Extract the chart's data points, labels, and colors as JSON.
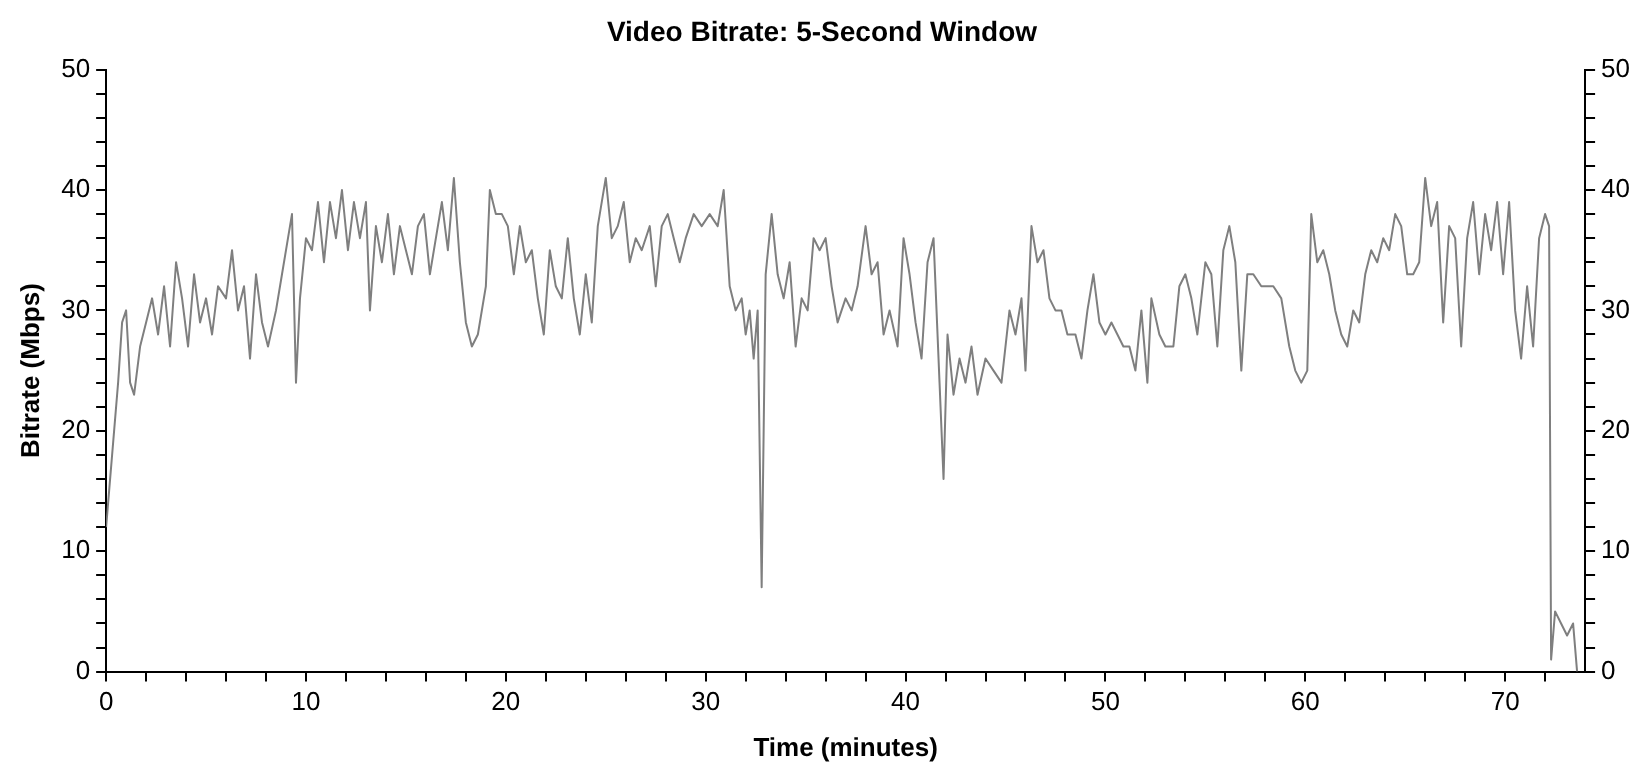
{
  "chart_data": {
    "type": "line",
    "title": "Video Bitrate: 5-Second Window",
    "xlabel": "Time (minutes)",
    "ylabel": "Bitrate (Mbps)",
    "x": [
      0,
      0.3,
      0.6,
      0.8,
      1.0,
      1.2,
      1.4,
      1.7,
      2.0,
      2.3,
      2.6,
      2.9,
      3.2,
      3.5,
      3.8,
      4.1,
      4.4,
      4.7,
      5.0,
      5.3,
      5.6,
      6.0,
      6.3,
      6.6,
      6.9,
      7.2,
      7.5,
      7.8,
      8.1,
      8.5,
      8.8,
      9.1,
      9.3,
      9.5,
      9.7,
      10.0,
      10.3,
      10.6,
      10.9,
      11.2,
      11.5,
      11.8,
      12.1,
      12.4,
      12.7,
      13.0,
      13.2,
      13.5,
      13.8,
      14.1,
      14.4,
      14.7,
      15.0,
      15.3,
      15.6,
      15.9,
      16.2,
      16.5,
      16.8,
      17.1,
      17.4,
      17.7,
      18.0,
      18.3,
      18.6,
      19.0,
      19.2,
      19.5,
      19.8,
      20.1,
      20.4,
      20.7,
      21.0,
      21.3,
      21.6,
      21.9,
      22.2,
      22.5,
      22.8,
      23.1,
      23.4,
      23.7,
      24.0,
      24.3,
      24.6,
      25.0,
      25.3,
      25.6,
      25.9,
      26.2,
      26.5,
      26.8,
      27.2,
      27.5,
      27.8,
      28.1,
      28.4,
      28.7,
      29.0,
      29.4,
      29.8,
      30.2,
      30.6,
      30.9,
      31.2,
      31.5,
      31.8,
      32.0,
      32.2,
      32.4,
      32.6,
      32.8,
      33.0,
      33.3,
      33.6,
      33.9,
      34.2,
      34.5,
      34.8,
      35.1,
      35.4,
      35.7,
      36.0,
      36.3,
      36.6,
      37.0,
      37.3,
      37.6,
      38.0,
      38.3,
      38.6,
      38.9,
      39.2,
      39.6,
      39.9,
      40.2,
      40.5,
      40.8,
      41.1,
      41.4,
      41.7,
      41.9,
      42.1,
      42.4,
      42.7,
      43.0,
      43.3,
      43.6,
      44.0,
      44.4,
      44.8,
      45.2,
      45.5,
      45.8,
      46.0,
      46.3,
      46.6,
      46.9,
      47.2,
      47.5,
      47.8,
      48.1,
      48.5,
      48.8,
      49.1,
      49.4,
      49.7,
      50.0,
      50.3,
      50.6,
      50.9,
      51.2,
      51.5,
      51.8,
      52.1,
      52.3,
      52.7,
      53.0,
      53.4,
      53.7,
      54.0,
      54.3,
      54.6,
      55.0,
      55.3,
      55.6,
      55.9,
      56.2,
      56.5,
      56.8,
      57.1,
      57.4,
      57.8,
      58.1,
      58.4,
      58.8,
      59.2,
      59.5,
      59.8,
      60.1,
      60.3,
      60.6,
      60.9,
      61.2,
      61.5,
      61.8,
      62.1,
      62.4,
      62.7,
      63.0,
      63.3,
      63.6,
      63.9,
      64.2,
      64.5,
      64.8,
      65.1,
      65.4,
      65.7,
      66.0,
      66.3,
      66.6,
      66.9,
      67.2,
      67.5,
      67.8,
      68.1,
      68.4,
      68.7,
      69.0,
      69.3,
      69.6,
      69.9,
      70.2,
      70.5,
      70.8,
      71.1,
      71.4,
      71.7,
      72.0,
      72.2,
      72.3,
      72.5,
      72.8,
      73.1,
      73.4,
      73.6
    ],
    "series": [
      {
        "color": "#7f7f7f",
        "values": [
          12,
          18,
          24,
          29,
          30,
          24,
          23,
          27,
          29,
          31,
          28,
          32,
          27,
          34,
          31,
          27,
          33,
          29,
          31,
          28,
          32,
          31,
          35,
          30,
          32,
          26,
          33,
          29,
          27,
          30,
          33,
          36,
          38,
          24,
          31,
          36,
          35,
          39,
          34,
          39,
          36,
          40,
          35,
          39,
          36,
          39,
          30,
          37,
          34,
          38,
          33,
          37,
          35,
          33,
          37,
          38,
          33,
          36,
          39,
          35,
          41,
          34,
          29,
          27,
          28,
          32,
          40,
          38,
          38,
          37,
          33,
          37,
          34,
          35,
          31,
          28,
          35,
          32,
          31,
          36,
          31,
          28,
          33,
          29,
          37,
          41,
          36,
          37,
          39,
          34,
          36,
          35,
          37,
          32,
          37,
          38,
          36,
          34,
          36,
          38,
          37,
          38,
          37,
          40,
          32,
          30,
          31,
          28,
          30,
          26,
          30,
          7,
          33,
          38,
          33,
          31,
          34,
          27,
          31,
          30,
          36,
          35,
          36,
          32,
          29,
          31,
          30,
          32,
          37,
          33,
          34,
          28,
          30,
          27,
          36,
          33,
          29,
          26,
          34,
          36,
          24,
          16,
          28,
          23,
          26,
          24,
          27,
          23,
          26,
          25,
          24,
          30,
          28,
          31,
          25,
          37,
          34,
          35,
          31,
          30,
          30,
          28,
          28,
          26,
          30,
          33,
          29,
          28,
          29,
          28,
          27,
          27,
          25,
          30,
          24,
          31,
          28,
          27,
          27,
          32,
          33,
          31,
          28,
          34,
          33,
          27,
          35,
          37,
          34,
          25,
          33,
          33,
          32,
          32,
          32,
          31,
          27,
          25,
          24,
          25,
          38,
          34,
          35,
          33,
          30,
          28,
          27,
          30,
          29,
          33,
          35,
          34,
          36,
          35,
          38,
          37,
          33,
          33,
          34,
          41,
          37,
          39,
          29,
          37,
          36,
          27,
          36,
          39,
          33,
          38,
          35,
          39,
          33,
          39,
          30,
          26,
          32,
          27,
          36,
          38,
          37,
          1,
          5,
          4,
          3,
          4,
          0
        ]
      }
    ],
    "xlim": [
      0,
      74
    ],
    "xticks": [
      0,
      {
        "value": 2,
        "label": null
      },
      {
        "value": 4,
        "label": null
      },
      {
        "value": 6,
        "label": null
      },
      {
        "value": 8,
        "label": null
      },
      10,
      {
        "value": 12,
        "label": null
      },
      {
        "value": 14,
        "label": null
      },
      {
        "value": 16,
        "label": null
      },
      {
        "value": 18,
        "label": null
      },
      20,
      {
        "value": 22,
        "label": null
      },
      {
        "value": 24,
        "label": null
      },
      {
        "value": 26,
        "label": null
      },
      {
        "value": 28,
        "label": null
      },
      30,
      {
        "value": 32,
        "label": null
      },
      {
        "value": 34,
        "label": null
      },
      {
        "value": 36,
        "label": null
      },
      {
        "value": 38,
        "label": null
      },
      40,
      {
        "value": 42,
        "label": null
      },
      {
        "value": 44,
        "label": null
      },
      {
        "value": 46,
        "label": null
      },
      {
        "value": 48,
        "label": null
      },
      50,
      {
        "value": 52,
        "label": null
      },
      {
        "value": 54,
        "label": null
      },
      {
        "value": 56,
        "label": null
      },
      {
        "value": 58,
        "label": null
      },
      60,
      {
        "value": 62,
        "label": null
      },
      {
        "value": 64,
        "label": null
      },
      {
        "value": 66,
        "label": null
      },
      {
        "value": 68,
        "label": null
      },
      70,
      {
        "value": 72,
        "label": null
      }
    ],
    "ylim": [
      0,
      50
    ],
    "yticks": [
      0,
      {
        "value": 2,
        "label": null
      },
      {
        "value": 4,
        "label": null
      },
      {
        "value": 6,
        "label": null
      },
      {
        "value": 8,
        "label": null
      },
      10,
      {
        "value": 12,
        "label": null
      },
      {
        "value": 14,
        "label": null
      },
      {
        "value": 16,
        "label": null
      },
      {
        "value": 18,
        "label": null
      },
      20,
      {
        "value": 22,
        "label": null
      },
      {
        "value": 24,
        "label": null
      },
      {
        "value": 26,
        "label": null
      },
      {
        "value": 28,
        "label": null
      },
      30,
      {
        "value": 32,
        "label": null
      },
      {
        "value": 34,
        "label": null
      },
      {
        "value": 36,
        "label": null
      },
      {
        "value": 38,
        "label": null
      },
      40,
      {
        "value": 42,
        "label": null
      },
      {
        "value": 44,
        "label": null
      },
      {
        "value": 46,
        "label": null
      },
      {
        "value": 48,
        "label": null
      },
      50
    ],
    "y2lim": [
      0,
      50
    ],
    "y2ticks": [
      0,
      {
        "value": 2,
        "label": null
      },
      {
        "value": 4,
        "label": null
      },
      {
        "value": 6,
        "label": null
      },
      {
        "value": 8,
        "label": null
      },
      10,
      {
        "value": 12,
        "label": null
      },
      {
        "value": 14,
        "label": null
      },
      {
        "value": 16,
        "label": null
      },
      {
        "value": 18,
        "label": null
      },
      20,
      {
        "value": 22,
        "label": null
      },
      {
        "value": 24,
        "label": null
      },
      {
        "value": 26,
        "label": null
      },
      {
        "value": 28,
        "label": null
      },
      30,
      {
        "value": 32,
        "label": null
      },
      {
        "value": 34,
        "label": null
      },
      {
        "value": 36,
        "label": null
      },
      {
        "value": 38,
        "label": null
      },
      40,
      {
        "value": 42,
        "label": null
      },
      {
        "value": 44,
        "label": null
      },
      {
        "value": 46,
        "label": null
      },
      {
        "value": 48,
        "label": null
      },
      50
    ],
    "grid": false,
    "legend": false,
    "marker": "none",
    "line_style": "solid"
  }
}
